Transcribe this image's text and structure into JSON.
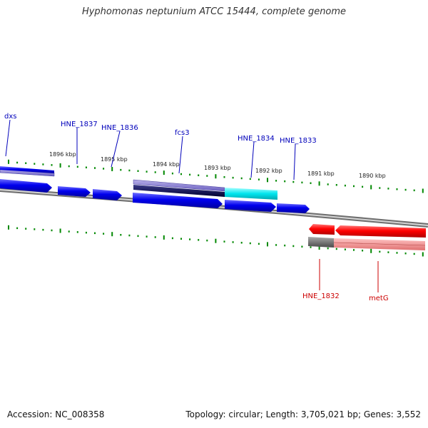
{
  "title": "Hyphomonas neptunium ATCC 15444, complete genome",
  "footer": {
    "accession": "Accession: NC_008358",
    "topology": "Topology: circular; Length: 3,705,021 bp; Genes: 3,552"
  },
  "colors": {
    "forward_gene": "#0000ee",
    "forward_label": "#0000bb",
    "reverse_gene": "#ff0000",
    "reverse_label": "#cc0000",
    "highlight_gene": "#00e5ee",
    "tick": "#008800",
    "backbone": "#888888"
  },
  "scale_labels": [
    "1896 kbp",
    "1895 kbp",
    "1894 kbp",
    "1893 kbp",
    "1892 kbp",
    "1891 kbp",
    "1890 kbp"
  ],
  "forward_genes": [
    "dxs",
    "HNE_1837",
    "HNE_1836",
    "fcs3",
    "HNE_1834",
    "HNE_1833"
  ],
  "reverse_genes": [
    "HNE_1832",
    "metG"
  ]
}
